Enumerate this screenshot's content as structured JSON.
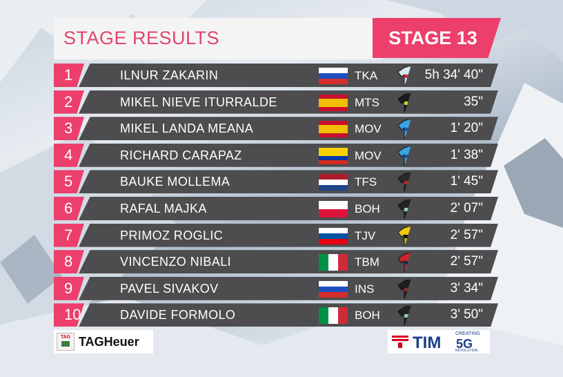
{
  "header": {
    "title": "STAGE RESULTS",
    "stage_label": "STAGE 13"
  },
  "rows": [
    {
      "pos": "1",
      "name": "ILNUR ZAKARIN",
      "flag": "russia",
      "team": "TKA",
      "jersey": "katusha-jersey",
      "time": "5h 34' 40\""
    },
    {
      "pos": "2",
      "name": "MIKEL NIEVE ITURRALDE",
      "flag": "spain",
      "team": "MTS",
      "jersey": "mitchelton-jersey",
      "time": "35\""
    },
    {
      "pos": "3",
      "name": "MIKEL LANDA MEANA",
      "flag": "spain",
      "team": "MOV",
      "jersey": "movistar-jersey",
      "time": "1' 20\""
    },
    {
      "pos": "4",
      "name": "RICHARD CARAPAZ",
      "flag": "ecuador",
      "team": "MOV",
      "jersey": "movistar-jersey",
      "time": "1' 38\""
    },
    {
      "pos": "5",
      "name": "BAUKE MOLLEMA",
      "flag": "netherlands",
      "team": "TFS",
      "jersey": "trek-jersey",
      "time": "1' 45\""
    },
    {
      "pos": "6",
      "name": "RAFAL MAJKA",
      "flag": "poland",
      "team": "BOH",
      "jersey": "bora-jersey",
      "time": "2' 07\""
    },
    {
      "pos": "7",
      "name": "PRIMOZ ROGLIC",
      "flag": "slovenia",
      "team": "TJV",
      "jersey": "jumbo-jersey",
      "time": "2' 57\""
    },
    {
      "pos": "8",
      "name": "VINCENZO NIBALI",
      "flag": "italy",
      "team": "TBM",
      "jersey": "bahrain-jersey",
      "time": "2' 57\""
    },
    {
      "pos": "9",
      "name": "PAVEL SIVAKOV",
      "flag": "russia",
      "team": "INS",
      "jersey": "ineos-jersey",
      "time": "3' 34\""
    },
    {
      "pos": "10",
      "name": "DAVIDE FORMOLO",
      "flag": "italy",
      "team": "BOH",
      "jersey": "bora-jersey",
      "time": "3' 50\""
    }
  ],
  "sponsors": {
    "tag_heuer": "TAGHeuer",
    "tim": "TIM",
    "tim_tag_top": "CREATING",
    "tim_5g": "5G",
    "tim_tag_bottom": "REVOLUTION"
  },
  "colors": {
    "accent": "#ec3f6c",
    "row_bg": "#4d4d4f",
    "header_bg": "#f4f4f4",
    "title_color": "#e0446d"
  }
}
